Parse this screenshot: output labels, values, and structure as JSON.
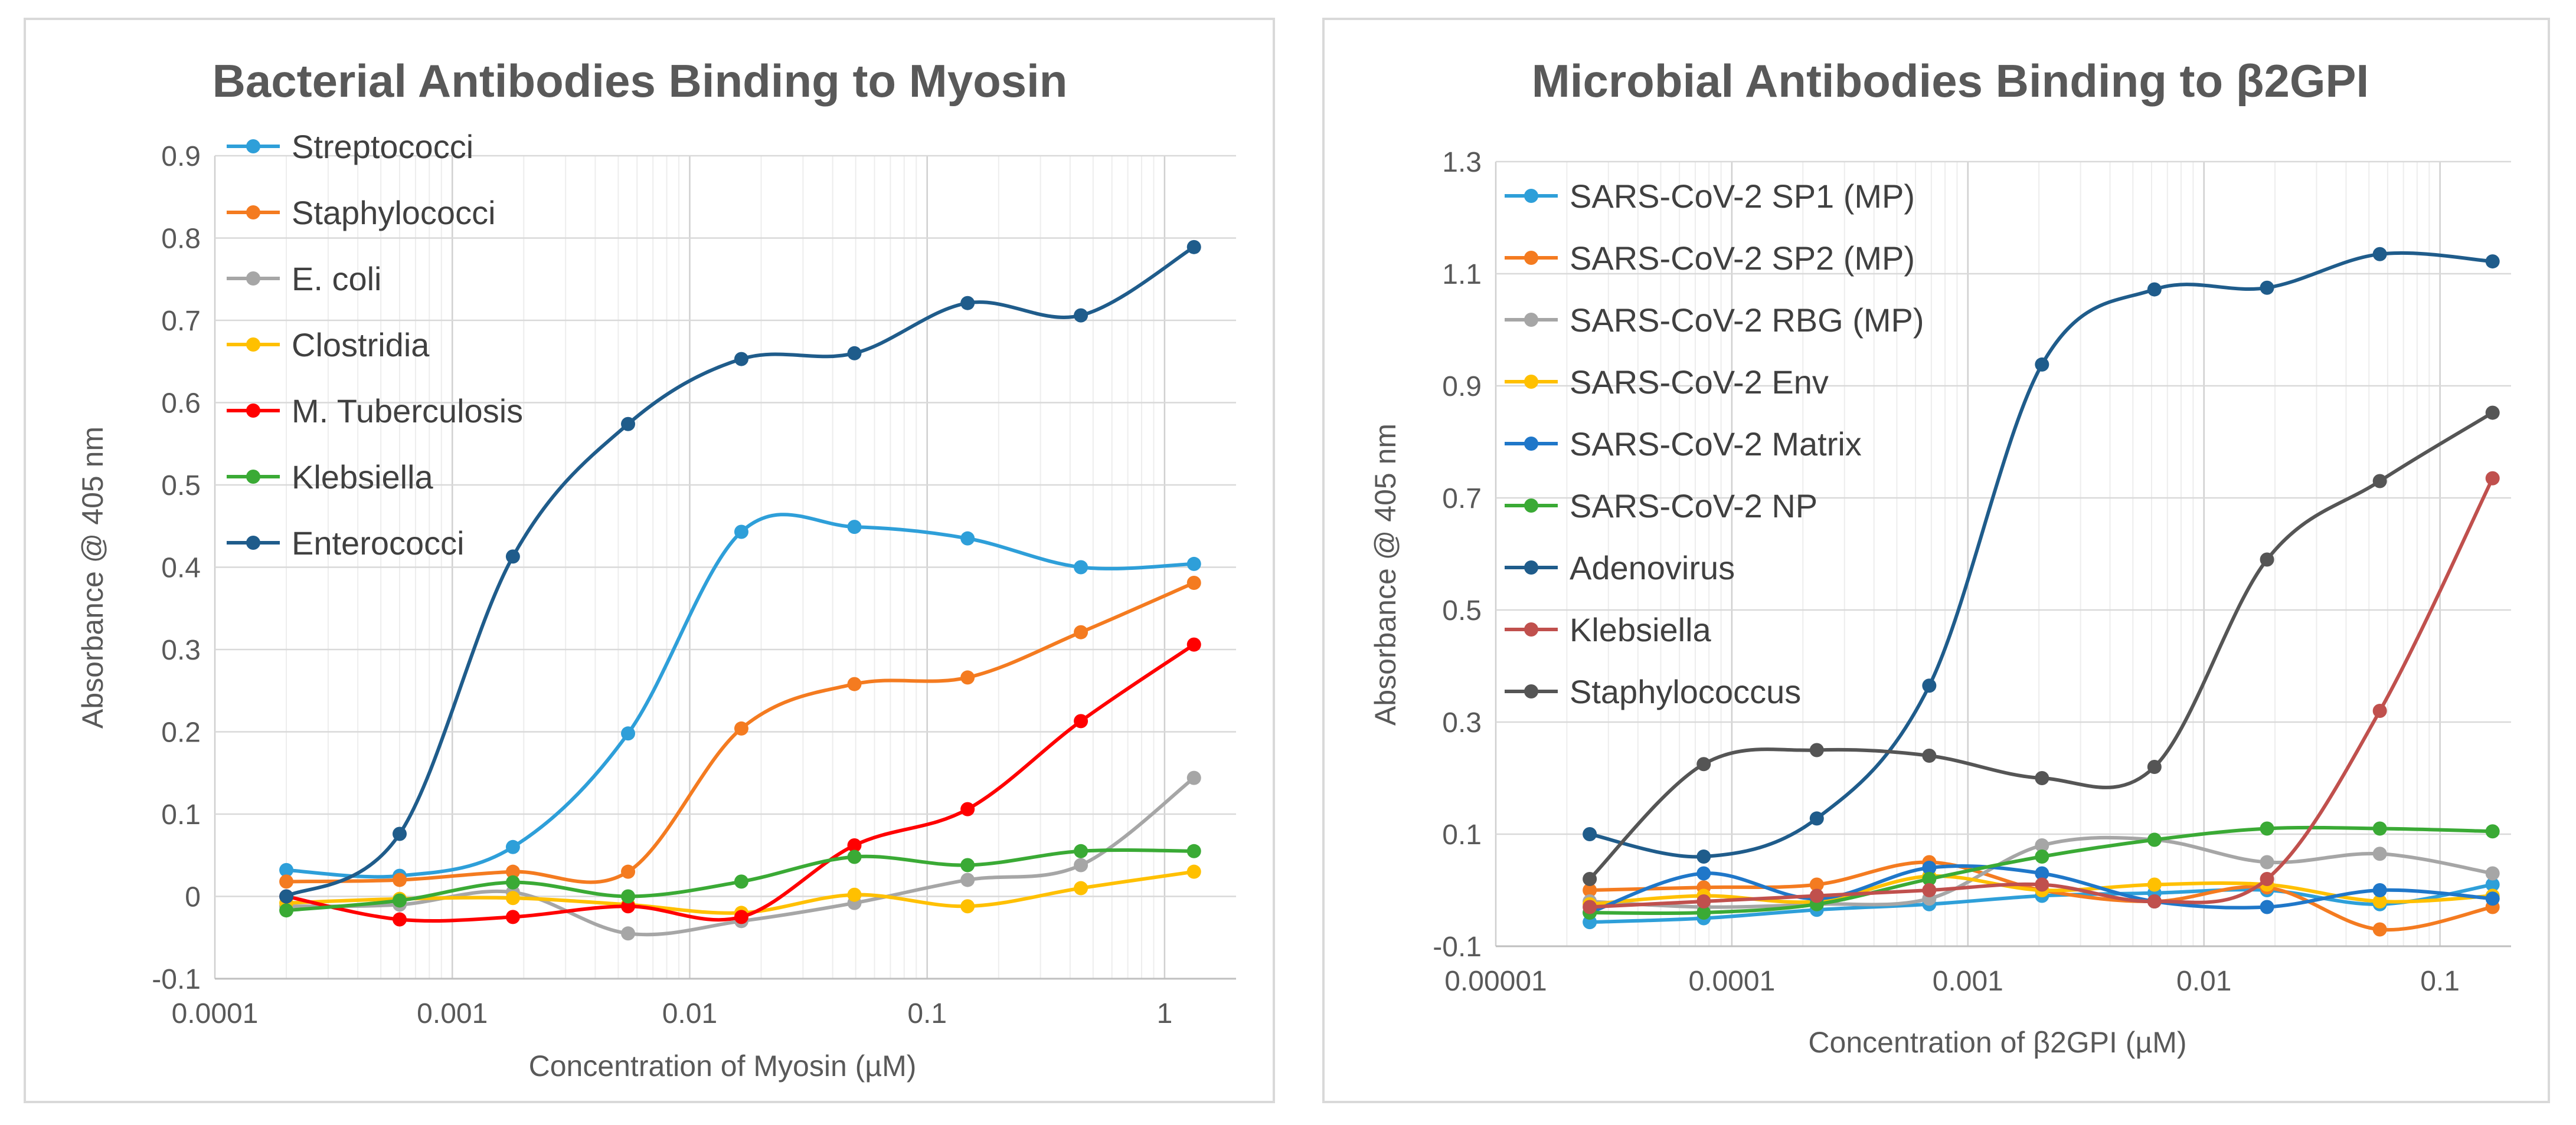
{
  "chart_data": [
    {
      "type": "line",
      "title": "Bacterial Antibodies Binding to Myosin",
      "xlabel": "Concentration of Myosin (µM)",
      "ylabel": "Absorbance @ 405 nm",
      "x_scale": "log",
      "xlim": [
        0.0001,
        2
      ],
      "ylim": [
        -0.1,
        0.9
      ],
      "x_ticks": [
        0.0001,
        0.001,
        0.01,
        0.1,
        1
      ],
      "x_tick_labels": [
        "0.0001",
        "0.001",
        "0.01",
        "0.1",
        "1"
      ],
      "y_ticks": [
        -0.1,
        0,
        0.1,
        0.2,
        0.3,
        0.4,
        0.5,
        0.6,
        0.7,
        0.8,
        0.9
      ],
      "y_tick_labels": [
        "-0.1",
        "0",
        "0.1",
        "0.2",
        "0.3",
        "0.4",
        "0.5",
        "0.6",
        "0.7",
        "0.8",
        "0.9"
      ],
      "grid": true,
      "legend_position": "top-left",
      "x": [
        0.0002,
        0.0006,
        0.0018,
        0.0055,
        0.0165,
        0.0494,
        0.148,
        0.444,
        1.33
      ],
      "series": [
        {
          "name": "Streptococci",
          "color": "#2e9fd9",
          "values": [
            0.032,
            0.025,
            0.06,
            0.198,
            0.443,
            0.449,
            0.435,
            0.4,
            0.404
          ]
        },
        {
          "name": "Staphylococci",
          "color": "#f47b20",
          "values": [
            0.018,
            0.02,
            0.03,
            0.03,
            0.204,
            0.258,
            0.266,
            0.321,
            0.381
          ]
        },
        {
          "name": "E. coli",
          "color": "#a6a6a6",
          "values": [
            -0.012,
            -0.01,
            0.005,
            -0.045,
            -0.03,
            -0.008,
            0.02,
            0.038,
            0.144
          ]
        },
        {
          "name": "Clostridia",
          "color": "#ffc000",
          "values": [
            -0.008,
            -0.003,
            -0.002,
            -0.01,
            -0.02,
            0.002,
            -0.012,
            0.01,
            0.03
          ]
        },
        {
          "name": "M. Tuberculosis",
          "color": "#ff0000",
          "values": [
            0.0,
            -0.028,
            -0.025,
            -0.012,
            -0.025,
            0.062,
            0.106,
            0.213,
            0.306
          ]
        },
        {
          "name": "Klebsiella",
          "color": "#3aaa35",
          "values": [
            -0.017,
            -0.005,
            0.017,
            0.0,
            0.018,
            0.048,
            0.038,
            0.055,
            0.055
          ]
        },
        {
          "name": "Enterococci",
          "color": "#1f5c8b",
          "values": [
            0.0,
            0.076,
            0.413,
            0.574,
            0.653,
            0.66,
            0.721,
            0.706,
            0.789
          ]
        }
      ]
    },
    {
      "type": "line",
      "title": "Microbial Antibodies Binding to β2GPI",
      "xlabel": "Concentration of β2GPI (µM)",
      "ylabel": "Absorbance @ 405 nm",
      "x_scale": "log",
      "xlim": [
        1e-05,
        0.2
      ],
      "ylim": [
        -0.1,
        1.3
      ],
      "x_ticks": [
        1e-05,
        0.0001,
        0.001,
        0.01,
        0.1
      ],
      "x_tick_labels": [
        "0.00001",
        "0.0001",
        "0.001",
        "0.01",
        "0.1"
      ],
      "y_ticks": [
        -0.1,
        0.1,
        0.3,
        0.5,
        0.7,
        0.9,
        1.1,
        1.3
      ],
      "y_tick_labels": [
        "-0.1",
        "0.1",
        "0.3",
        "0.5",
        "0.7",
        "0.9",
        "1.1",
        "1.3"
      ],
      "grid": true,
      "legend_position": "top-left",
      "x": [
        2.5e-05,
        7.6e-05,
        0.000229,
        0.000686,
        0.00206,
        0.00617,
        0.0185,
        0.0556,
        0.167
      ],
      "series": [
        {
          "name": "SARS-CoV-2 SP1 (MP)",
          "color": "#2e9fd9",
          "values": [
            -0.057,
            -0.05,
            -0.035,
            -0.025,
            -0.01,
            -0.005,
            0.0,
            -0.025,
            0.01
          ]
        },
        {
          "name": "SARS-CoV-2 SP2 (MP)",
          "color": "#f47b20",
          "values": [
            0.0,
            0.005,
            0.01,
            0.05,
            0.0,
            -0.02,
            0.005,
            -0.07,
            -0.03
          ]
        },
        {
          "name": "SARS-CoV-2 RBG (MP)",
          "color": "#a6a6a6",
          "values": [
            -0.02,
            -0.03,
            -0.025,
            -0.015,
            0.08,
            0.09,
            0.05,
            0.065,
            0.03
          ]
        },
        {
          "name": "SARS-CoV-2 Env",
          "color": "#ffc000",
          "values": [
            -0.025,
            -0.01,
            -0.02,
            0.025,
            0.0,
            0.01,
            0.01,
            -0.02,
            -0.01
          ]
        },
        {
          "name": "SARS-CoV-2 Matrix",
          "color": "#1f77c9",
          "values": [
            -0.04,
            0.03,
            -0.015,
            0.04,
            0.03,
            -0.02,
            -0.03,
            0.0,
            -0.015
          ]
        },
        {
          "name": "SARS-CoV-2 NP",
          "color": "#3aaa35",
          "values": [
            -0.04,
            -0.04,
            -0.025,
            0.02,
            0.06,
            0.09,
            0.11,
            0.11,
            0.105
          ]
        },
        {
          "name": "Adenovirus",
          "color": "#1f5c8b",
          "values": [
            0.1,
            0.06,
            0.128,
            0.365,
            0.938,
            1.072,
            1.075,
            1.135,
            1.122
          ]
        },
        {
          "name": "Klebsiella",
          "color": "#c0504d",
          "values": [
            -0.03,
            -0.02,
            -0.01,
            0.0,
            0.01,
            -0.02,
            0.02,
            0.32,
            0.735
          ]
        },
        {
          "name": "Staphylococcus",
          "color": "#555555",
          "values": [
            0.02,
            0.225,
            0.25,
            0.24,
            0.2,
            0.22,
            0.59,
            0.73,
            0.852
          ]
        }
      ]
    }
  ]
}
